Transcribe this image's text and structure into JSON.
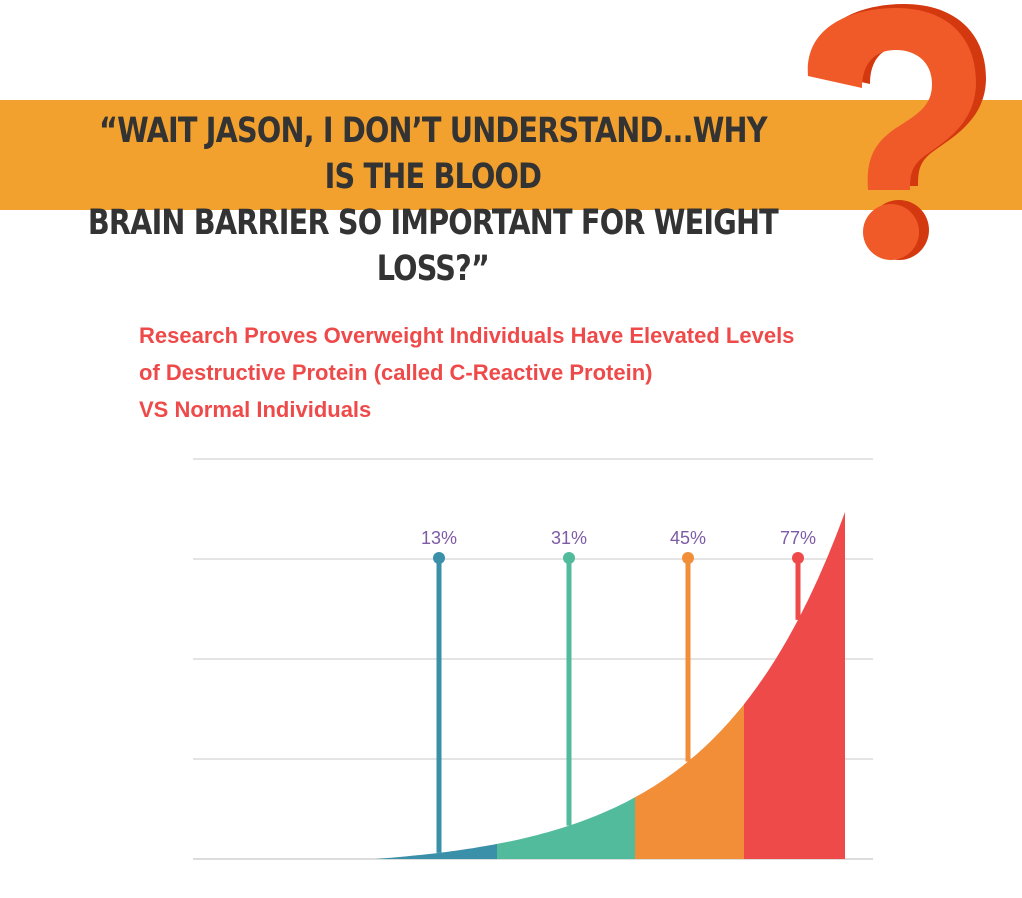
{
  "banner": {
    "line1": "“WAIT JASON, I DON’T UNDERSTAND...WHY IS THE BLOOD",
    "line2": "BRAIN BARRIER SO IMPORTANT FOR WEIGHT LOSS?”"
  },
  "icons": {
    "decoration": "question-mark-icon"
  },
  "colors": {
    "banner": "#f2a12e",
    "question_mark": "#f05a28",
    "title": "#ef4a4a",
    "value_labels": "#7d5ba6",
    "grid": "#dcdcdc"
  },
  "chart_data": {
    "type": "area",
    "title_lines": [
      "Research Proves Overweight Individuals Have Elevated Levels",
      "of Destructive Protein (called C-Reactive Protein)",
      "VS Normal Individuals"
    ],
    "xlabel": "",
    "ylabel": "",
    "grid": true,
    "legend": "none",
    "series": [
      {
        "value": 13,
        "label": "13%",
        "color": "#3a8fa9"
      },
      {
        "value": 31,
        "label": "31%",
        "color": "#52bb9c"
      },
      {
        "value": 45,
        "label": "45%",
        "color": "#f28d38"
      },
      {
        "value": 77,
        "label": "77%",
        "color": "#ef4a4a"
      }
    ]
  }
}
